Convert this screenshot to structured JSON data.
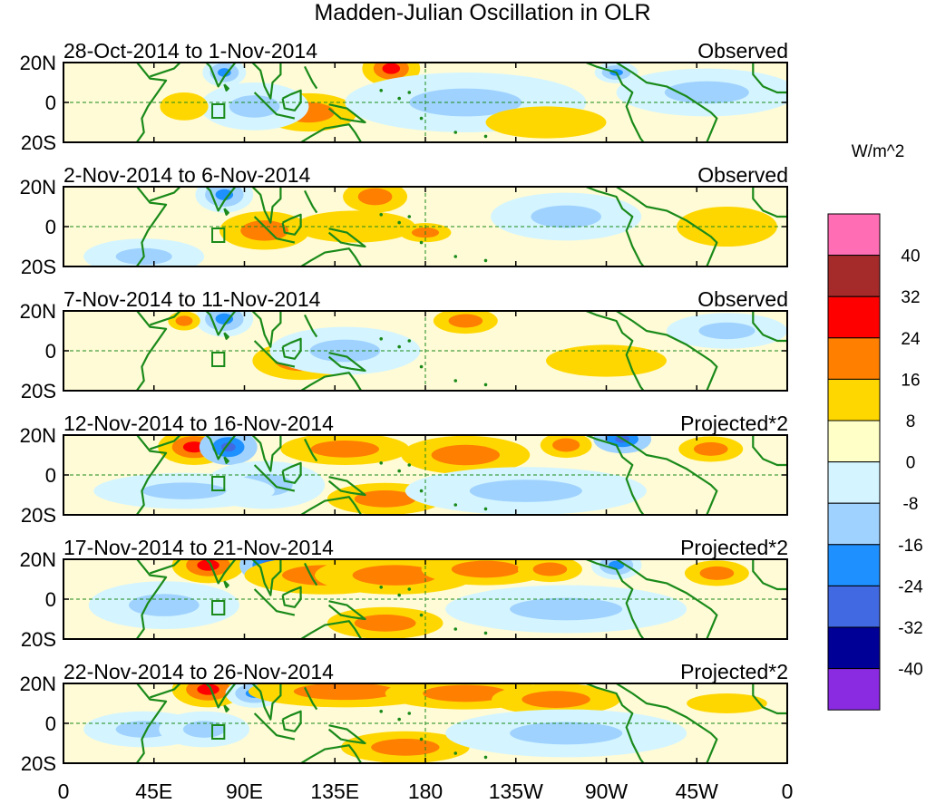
{
  "chart_data": {
    "type": "heatmap",
    "title": "Madden-Julian Oscillation in OLR",
    "units": "W/m^2",
    "panels": [
      {
        "date_range": "28-Oct-2014 to 1-Nov-2014",
        "type": "Observed"
      },
      {
        "date_range": "2-Nov-2014 to 6-Nov-2014",
        "type": "Observed"
      },
      {
        "date_range": "7-Nov-2014 to 11-Nov-2014",
        "type": "Observed"
      },
      {
        "date_range": "12-Nov-2014 to 16-Nov-2014",
        "type": "Projected*2"
      },
      {
        "date_range": "17-Nov-2014 to 21-Nov-2014",
        "type": "Projected*2"
      },
      {
        "date_range": "22-Nov-2014 to 26-Nov-2014",
        "type": "Projected*2"
      }
    ],
    "y_ticks": [
      "20N",
      "0",
      "20S"
    ],
    "ylim": [
      -20,
      20
    ],
    "x_ticks": [
      "0",
      "45E",
      "90E",
      "135E",
      "180",
      "135W",
      "90W",
      "45W",
      "0"
    ],
    "xlim": [
      0,
      360
    ],
    "colorbar": {
      "levels": [
        "40",
        "32",
        "24",
        "16",
        "8",
        "0",
        "-8",
        "-16",
        "-24",
        "-32",
        "-40"
      ],
      "colors": [
        "#ff6eb4",
        "#a52a2a",
        "#ff0000",
        "#ff7f00",
        "#ffd700",
        "#ffffc8",
        "#d4f5ff",
        "#a0d2ff",
        "#1e90ff",
        "#4169e1",
        "#000096",
        "#8a2be2"
      ]
    },
    "anomaly_blobs": [
      [
        [
          163,
          17,
          8,
          5,
          2
        ],
        [
          80,
          15,
          6,
          4,
          -1
        ],
        [
          122,
          -5,
          15,
          6,
          1
        ],
        [
          95,
          -2,
          18,
          8,
          -0.6
        ],
        [
          60,
          -2,
          12,
          7,
          0.6
        ],
        [
          200,
          0,
          40,
          10,
          -0.6
        ],
        [
          240,
          -10,
          30,
          8,
          0.4
        ],
        [
          275,
          15,
          6,
          3,
          -1
        ],
        [
          320,
          5,
          30,
          8,
          -0.5
        ]
      ],
      [
        [
          155,
          15,
          10,
          5,
          1
        ],
        [
          80,
          16,
          8,
          5,
          -1
        ],
        [
          100,
          -2,
          14,
          6,
          1
        ],
        [
          145,
          0,
          30,
          8,
          0.7
        ],
        [
          180,
          -3,
          8,
          3,
          1
        ],
        [
          250,
          5,
          25,
          8,
          -0.6
        ],
        [
          330,
          0,
          25,
          10,
          0.4
        ],
        [
          40,
          -15,
          20,
          6,
          -0.5
        ]
      ],
      [
        [
          80,
          16,
          8,
          5,
          -1
        ],
        [
          60,
          15,
          5,
          3,
          1
        ],
        [
          118,
          -5,
          15,
          6,
          1
        ],
        [
          140,
          0,
          25,
          8,
          -0.6
        ],
        [
          200,
          15,
          10,
          4,
          1
        ],
        [
          270,
          -5,
          30,
          8,
          0.4
        ],
        [
          330,
          10,
          20,
          6,
          -0.6
        ]
      ],
      [
        [
          65,
          14,
          10,
          5,
          2
        ],
        [
          82,
          14,
          8,
          5,
          -2
        ],
        [
          140,
          13,
          20,
          5,
          1.5
        ],
        [
          200,
          10,
          20,
          6,
          1
        ],
        [
          250,
          15,
          8,
          4,
          1.5
        ],
        [
          278,
          18,
          8,
          4,
          -2
        ],
        [
          322,
          13,
          10,
          4,
          1.5
        ],
        [
          160,
          -12,
          18,
          5,
          1.5
        ],
        [
          100,
          -5,
          20,
          8,
          -0.8
        ],
        [
          60,
          -8,
          30,
          6,
          -0.8
        ],
        [
          230,
          -8,
          40,
          8,
          -0.5
        ]
      ],
      [
        [
          72,
          17,
          10,
          5,
          2.5
        ],
        [
          102,
          17,
          8,
          5,
          -2
        ],
        [
          130,
          12,
          25,
          6,
          1.3
        ],
        [
          165,
          12,
          25,
          6,
          1.5
        ],
        [
          210,
          15,
          20,
          5,
          1
        ],
        [
          242,
          15,
          10,
          4,
          1.5
        ],
        [
          275,
          17,
          7,
          4,
          -1.5
        ],
        [
          325,
          13,
          10,
          4,
          1.2
        ],
        [
          160,
          -12,
          18,
          5,
          1.5
        ],
        [
          50,
          -3,
          25,
          8,
          -0.8
        ],
        [
          250,
          -5,
          40,
          8,
          -0.5
        ]
      ],
      [
        [
          72,
          17,
          10,
          5,
          2.2
        ],
        [
          95,
          15,
          8,
          4,
          -1.2
        ],
        [
          140,
          16,
          30,
          5,
          1.3
        ],
        [
          200,
          15,
          25,
          5,
          1.2
        ],
        [
          245,
          12,
          20,
          5,
          1
        ],
        [
          170,
          -12,
          20,
          5,
          1.5
        ],
        [
          40,
          -3,
          20,
          6,
          -0.8
        ],
        [
          70,
          -3,
          15,
          6,
          -0.8
        ],
        [
          250,
          -5,
          40,
          8,
          -0.5
        ],
        [
          330,
          10,
          20,
          5,
          0.5
        ]
      ]
    ]
  }
}
